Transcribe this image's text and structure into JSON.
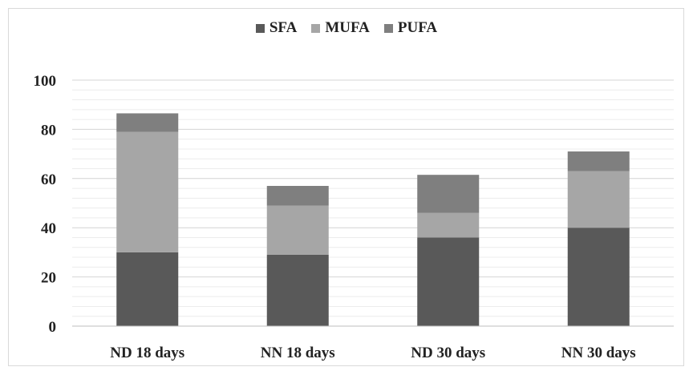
{
  "chart_data": {
    "type": "bar",
    "stacked": true,
    "categories": [
      "ND 18 days",
      "NN 18 days",
      "ND 30 days",
      "NN 30 days"
    ],
    "series": [
      {
        "name": "SFA",
        "values": [
          30,
          29,
          36,
          40
        ],
        "color": "#595959"
      },
      {
        "name": "MUFA",
        "values": [
          49,
          20,
          10,
          23
        ],
        "color": "#a6a6a6"
      },
      {
        "name": "PUFA",
        "values": [
          7.5,
          8,
          15.5,
          8
        ],
        "color": "#7f7f7f"
      }
    ],
    "title": "",
    "xlabel": "",
    "ylabel": "",
    "ylim": [
      0,
      100
    ],
    "yticks": [
      "0",
      "20",
      "40",
      "60",
      "80",
      "100"
    ],
    "grid": true,
    "legend": "top-center"
  }
}
